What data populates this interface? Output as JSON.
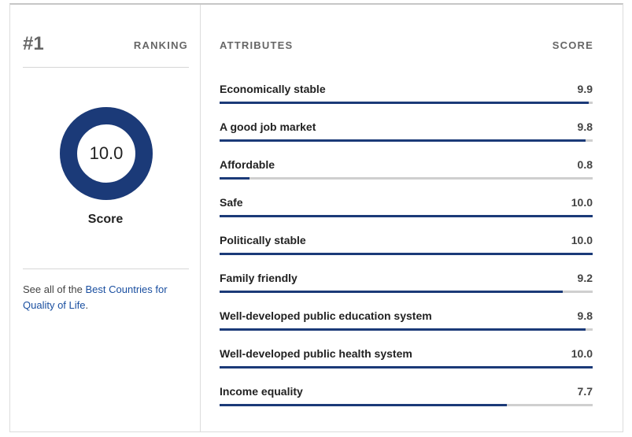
{
  "ranking": {
    "rank": "#1",
    "label": "RANKING",
    "score_value": "10.0",
    "score_fraction": 1.0,
    "score_label": "Score",
    "see_all_prefix": "See all of the ",
    "see_all_link": "Best Countries for Quality of Life",
    "see_all_suffix": "."
  },
  "attributes": {
    "header": "ATTRIBUTES",
    "score_header": "SCORE",
    "items": [
      {
        "name": "Economically stable",
        "score": "9.9",
        "fraction": 0.99
      },
      {
        "name": "A good job market",
        "score": "9.8",
        "fraction": 0.98
      },
      {
        "name": "Affordable",
        "score": "0.8",
        "fraction": 0.08
      },
      {
        "name": "Safe",
        "score": "10.0",
        "fraction": 1.0
      },
      {
        "name": "Politically stable",
        "score": "10.0",
        "fraction": 1.0
      },
      {
        "name": "Family friendly",
        "score": "9.2",
        "fraction": 0.92
      },
      {
        "name": "Well-developed public education system",
        "score": "9.8",
        "fraction": 0.98
      },
      {
        "name": "Well-developed public health system",
        "score": "10.0",
        "fraction": 1.0
      },
      {
        "name": "Income equality",
        "score": "7.7",
        "fraction": 0.77
      }
    ]
  },
  "colors": {
    "accent": "#1b3a78",
    "track": "#cfcfcf",
    "link": "#1a4fa0"
  }
}
